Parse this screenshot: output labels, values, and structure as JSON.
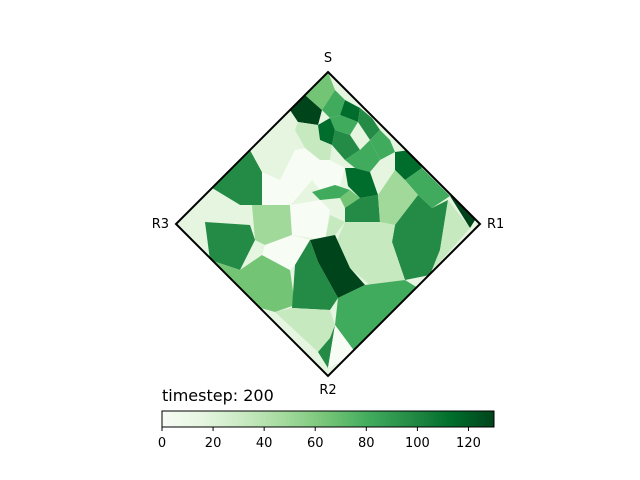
{
  "labels": {
    "top": "S",
    "right": "R1",
    "bottom": "R2",
    "left": "R3"
  },
  "timestep": "timestep: 200",
  "colorbar": {
    "min": 0,
    "max": 130,
    "ticks": [
      0,
      20,
      40,
      60,
      80,
      100,
      120
    ],
    "tick_labels": [
      "0",
      "20",
      "40",
      "60",
      "80",
      "100",
      "120"
    ],
    "colormap": "Greens",
    "stops": [
      "#f7fcf5",
      "#e5f5e0",
      "#c7e9c0",
      "#a1d99b",
      "#74c476",
      "#41ab5d",
      "#238b45",
      "#006d2c",
      "#00441b"
    ]
  },
  "chart_data": {
    "type": "heatmap",
    "title": "",
    "colorbar_range": [
      0,
      130
    ],
    "colormap": "Greens"
  }
}
